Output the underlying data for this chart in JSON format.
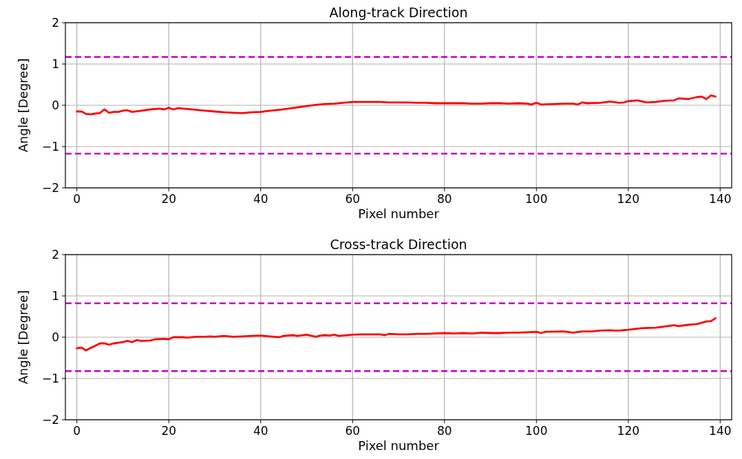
{
  "chart_data": [
    {
      "type": "line",
      "title": "Along-track Direction",
      "xlabel": "Pixel number",
      "ylabel": "Angle [Degree]",
      "xlim": [
        -2.5,
        142.5
      ],
      "ylim": [
        -2,
        2
      ],
      "xticks": [
        0,
        20,
        40,
        60,
        80,
        100,
        120,
        140
      ],
      "yticks": [
        -2,
        -1,
        0,
        1,
        2
      ],
      "grid": true,
      "line_style": "solid",
      "series": [
        {
          "color": "#ff0000",
          "x": [
            0,
            1,
            2,
            3,
            4,
            5,
            6,
            7,
            8,
            9,
            10,
            11,
            12,
            14,
            16,
            18,
            19,
            20,
            21,
            22,
            24,
            26,
            28,
            30,
            32,
            34,
            36,
            38,
            40,
            42,
            44,
            46,
            48,
            50,
            52,
            54,
            56,
            58,
            60,
            62,
            64,
            66,
            68,
            70,
            72,
            74,
            76,
            78,
            80,
            82,
            84,
            86,
            88,
            90,
            92,
            94,
            96,
            98,
            99,
            100,
            101,
            104,
            106,
            108,
            109,
            110,
            111,
            114,
            116,
            118,
            119,
            120,
            122,
            124,
            126,
            128,
            130,
            131,
            133,
            135,
            136,
            137,
            138,
            139
          ],
          "values": [
            -0.15,
            -0.15,
            -0.21,
            -0.22,
            -0.2,
            -0.19,
            -0.1,
            -0.18,
            -0.16,
            -0.16,
            -0.13,
            -0.12,
            -0.16,
            -0.13,
            -0.1,
            -0.08,
            -0.1,
            -0.06,
            -0.1,
            -0.07,
            -0.09,
            -0.11,
            -0.13,
            -0.15,
            -0.17,
            -0.18,
            -0.19,
            -0.17,
            -0.16,
            -0.13,
            -0.11,
            -0.08,
            -0.05,
            -0.02,
            0.01,
            0.03,
            0.04,
            0.06,
            0.08,
            0.08,
            0.08,
            0.08,
            0.07,
            0.07,
            0.07,
            0.06,
            0.06,
            0.05,
            0.05,
            0.05,
            0.05,
            0.04,
            0.04,
            0.05,
            0.05,
            0.04,
            0.05,
            0.04,
            0.02,
            0.06,
            0.02,
            0.03,
            0.04,
            0.04,
            0.02,
            0.07,
            0.05,
            0.06,
            0.09,
            0.06,
            0.07,
            0.1,
            0.12,
            0.07,
            0.08,
            0.11,
            0.12,
            0.17,
            0.15,
            0.2,
            0.21,
            0.15,
            0.24,
            0.21
          ]
        }
      ],
      "ref_lines": [
        {
          "axis": "y",
          "value": 1.17,
          "color": "#bf00bf",
          "line_style": "dashed"
        },
        {
          "axis": "y",
          "value": -1.17,
          "color": "#bf00bf",
          "line_style": "dashed"
        }
      ]
    },
    {
      "type": "line",
      "title": "Cross-track Direction",
      "xlabel": "Pixel number",
      "ylabel": "Angle [Degree]",
      "xlim": [
        -2.5,
        142.5
      ],
      "ylim": [
        -2,
        2
      ],
      "xticks": [
        0,
        20,
        40,
        60,
        80,
        100,
        120,
        140
      ],
      "yticks": [
        -2,
        -1,
        0,
        1,
        2
      ],
      "grid": true,
      "line_style": "solid",
      "series": [
        {
          "color": "#ff0000",
          "x": [
            0,
            1,
            2,
            3,
            4,
            5,
            6,
            7,
            8,
            10,
            11,
            12,
            13,
            14,
            16,
            17,
            19,
            20,
            21,
            23,
            24,
            26,
            28,
            29,
            30,
            32,
            34,
            36,
            38,
            40,
            42,
            44,
            45,
            47,
            48,
            50,
            52,
            53,
            54,
            55,
            56,
            57,
            60,
            62,
            64,
            66,
            67,
            68,
            70,
            72,
            74,
            76,
            78,
            80,
            82,
            84,
            86,
            88,
            90,
            92,
            94,
            96,
            98,
            100,
            101,
            102,
            106,
            108,
            110,
            112,
            114,
            116,
            117,
            118,
            120,
            123,
            126,
            128,
            130,
            131,
            133,
            135,
            137,
            138,
            139
          ],
          "values": [
            -0.27,
            -0.25,
            -0.32,
            -0.26,
            -0.21,
            -0.15,
            -0.15,
            -0.18,
            -0.15,
            -0.12,
            -0.09,
            -0.12,
            -0.07,
            -0.09,
            -0.08,
            -0.05,
            -0.04,
            -0.05,
            0,
            0,
            -0.01,
            0.01,
            0.01,
            0.02,
            0.01,
            0.03,
            0.01,
            0.02,
            0.03,
            0.04,
            0.02,
            0,
            0.03,
            0.05,
            0.03,
            0.06,
            0.01,
            0.04,
            0.05,
            0.04,
            0.06,
            0.03,
            0.06,
            0.07,
            0.07,
            0.07,
            0.05,
            0.08,
            0.07,
            0.07,
            0.08,
            0.08,
            0.09,
            0.1,
            0.09,
            0.1,
            0.09,
            0.11,
            0.1,
            0.1,
            0.11,
            0.11,
            0.12,
            0.13,
            0.1,
            0.13,
            0.14,
            0.11,
            0.14,
            0.14,
            0.16,
            0.17,
            0.16,
            0.16,
            0.18,
            0.22,
            0.23,
            0.26,
            0.29,
            0.27,
            0.3,
            0.32,
            0.38,
            0.39,
            0.46
          ]
        }
      ],
      "ref_lines": [
        {
          "axis": "y",
          "value": 0.82,
          "color": "#bf00bf",
          "line_style": "dashed"
        },
        {
          "axis": "y",
          "value": -0.82,
          "color": "#bf00bf",
          "line_style": "dashed"
        }
      ]
    }
  ]
}
